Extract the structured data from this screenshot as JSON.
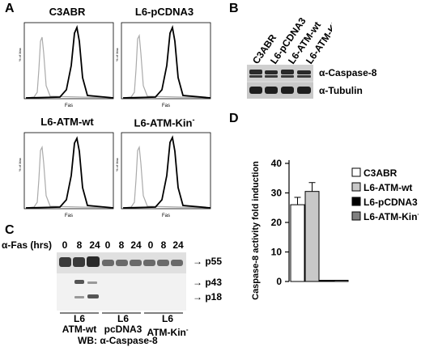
{
  "panels": {
    "A": {
      "letter": "A",
      "histograms": [
        {
          "title": "C3ABR",
          "xlabel": "Fas",
          "ylabel": "% of Max"
        },
        {
          "title": "L6-pCDNA3",
          "xlabel": "Fas",
          "ylabel": "% of Max"
        },
        {
          "title": "L6-ATM-wt",
          "xlabel": "Fas",
          "ylabel": "% of Max"
        },
        {
          "title": "L6-ATM-Kin",
          "title_sup": "-",
          "xlabel": "Fas",
          "ylabel": "% of Max"
        }
      ]
    },
    "B": {
      "letter": "B",
      "lanes": [
        "C3ABR",
        "L6-pCDNA3",
        "L6-ATM-wt",
        "L6-ATM-Kin -"
      ],
      "rows": [
        "α-Caspase-8",
        "α-Tubulin"
      ]
    },
    "C": {
      "letter": "C",
      "axis_label": "α-Fas (hrs)",
      "times": [
        "0",
        "8",
        "24",
        "0",
        "8",
        "24",
        "0",
        "8",
        "24"
      ],
      "bands": [
        "p55",
        "p43",
        "p18"
      ],
      "groups": [
        {
          "line1": "L6",
          "line2": "ATM-wt",
          "sup": ""
        },
        {
          "line1": "L6",
          "line2": "pcDNA3",
          "sup": ""
        },
        {
          "line1": "L6",
          "line2": "ATM-Kin",
          "sup": "-"
        }
      ],
      "wb_label": "WB: α-Caspase-8"
    },
    "D": {
      "letter": "D"
    }
  },
  "chart_data": {
    "type": "bar",
    "categories": [
      "C3ABR",
      "L6-ATM-wt",
      "L6-pCDNA3",
      "L6-ATM-Kin-"
    ],
    "values": [
      26,
      30.5,
      0.3,
      0.3
    ],
    "errors": [
      2.5,
      3,
      0,
      0
    ],
    "ylabel": "Caspase-8 activity fold induction",
    "ylim": [
      0,
      40
    ],
    "yticks": [
      0,
      10,
      20,
      30,
      40
    ],
    "colors": [
      "#ffffff",
      "#c8c8c8",
      "#000000",
      "#808080"
    ],
    "legend": [
      {
        "name": "C3ABR",
        "color": "#ffffff"
      },
      {
        "name": "L6-ATM-wt",
        "color": "#c8c8c8"
      },
      {
        "name": "L6-pCDNA3",
        "color": "#000000"
      },
      {
        "name": "L6-ATM-Kin",
        "sup": "-",
        "color": "#808080"
      }
    ],
    "legend_position": "top-right"
  }
}
